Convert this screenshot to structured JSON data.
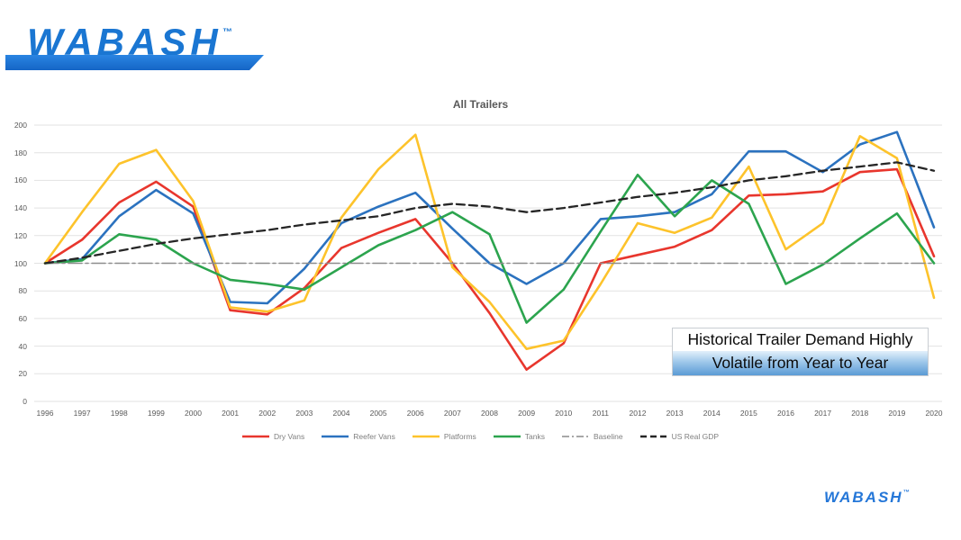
{
  "slide": {
    "background": "#ffffff"
  },
  "logo_top": {
    "text": "WABASH",
    "trademark": "™",
    "color": "#1a76d2",
    "bar_color": "#1a76d2"
  },
  "logo_bottom": {
    "text": "WABASH",
    "trademark": "™",
    "color": "#2577d8"
  },
  "annotation": {
    "line1": "Historical Trailer Demand Highly",
    "line2": "Volatile from Year to Year",
    "highlight_top": "#e3f0fb",
    "highlight_bottom": "#5b9bd5"
  },
  "chart_data": {
    "type": "line",
    "title": "All Trailers",
    "x": [
      1996,
      1997,
      1998,
      1999,
      2000,
      2001,
      2002,
      2003,
      2004,
      2005,
      2006,
      2007,
      2008,
      2009,
      2010,
      2011,
      2012,
      2013,
      2014,
      2015,
      2016,
      2017,
      2018,
      2019,
      2020
    ],
    "ylim": [
      0,
      200
    ],
    "yticks": [
      0,
      20,
      40,
      60,
      80,
      100,
      120,
      140,
      160,
      180,
      200
    ],
    "grid": true,
    "legend_position": "bottom",
    "series": [
      {
        "name": "Dry Vans",
        "color": "#e8362d",
        "style": "solid",
        "values": [
          100,
          117,
          144,
          159,
          141,
          66,
          63,
          82,
          111,
          122,
          132,
          100,
          64,
          23,
          42,
          100,
          106,
          112,
          124,
          149,
          150,
          152,
          166,
          168,
          105
        ]
      },
      {
        "name": "Reefer Vans",
        "color": "#2b72bf",
        "style": "solid",
        "values": [
          100,
          103,
          134,
          153,
          136,
          72,
          71,
          96,
          129,
          141,
          151,
          125,
          100,
          85,
          100,
          132,
          134,
          137,
          150,
          181,
          181,
          166,
          186,
          195,
          126
        ]
      },
      {
        "name": "Platforms",
        "color": "#fdc32b",
        "style": "solid",
        "values": [
          100,
          137,
          172,
          182,
          145,
          68,
          65,
          73,
          133,
          168,
          193,
          97,
          72,
          38,
          44,
          85,
          129,
          122,
          133,
          170,
          110,
          129,
          192,
          176,
          75
        ]
      },
      {
        "name": "Tanks",
        "color": "#2ca44e",
        "style": "solid",
        "values": [
          100,
          102,
          121,
          117,
          100,
          88,
          85,
          81,
          97,
          113,
          124,
          137,
          121,
          57,
          81,
          123,
          164,
          134,
          160,
          143,
          85,
          99,
          118,
          136,
          100
        ]
      },
      {
        "name": "Baseline",
        "color": "#8c8c8c",
        "style": "dashdot",
        "values": [
          100,
          100,
          100,
          100,
          100,
          100,
          100,
          100,
          100,
          100,
          100,
          100,
          100,
          100,
          100,
          100,
          100,
          100,
          100,
          100,
          100,
          100,
          100,
          100,
          100
        ]
      },
      {
        "name": "US Real GDP",
        "color": "#262626",
        "style": "dash",
        "values": [
          100,
          104,
          109,
          114,
          118,
          121,
          124,
          128,
          131,
          134,
          140,
          143,
          141,
          137,
          140,
          144,
          148,
          151,
          155,
          160,
          163,
          167,
          170,
          173,
          167
        ]
      }
    ]
  }
}
